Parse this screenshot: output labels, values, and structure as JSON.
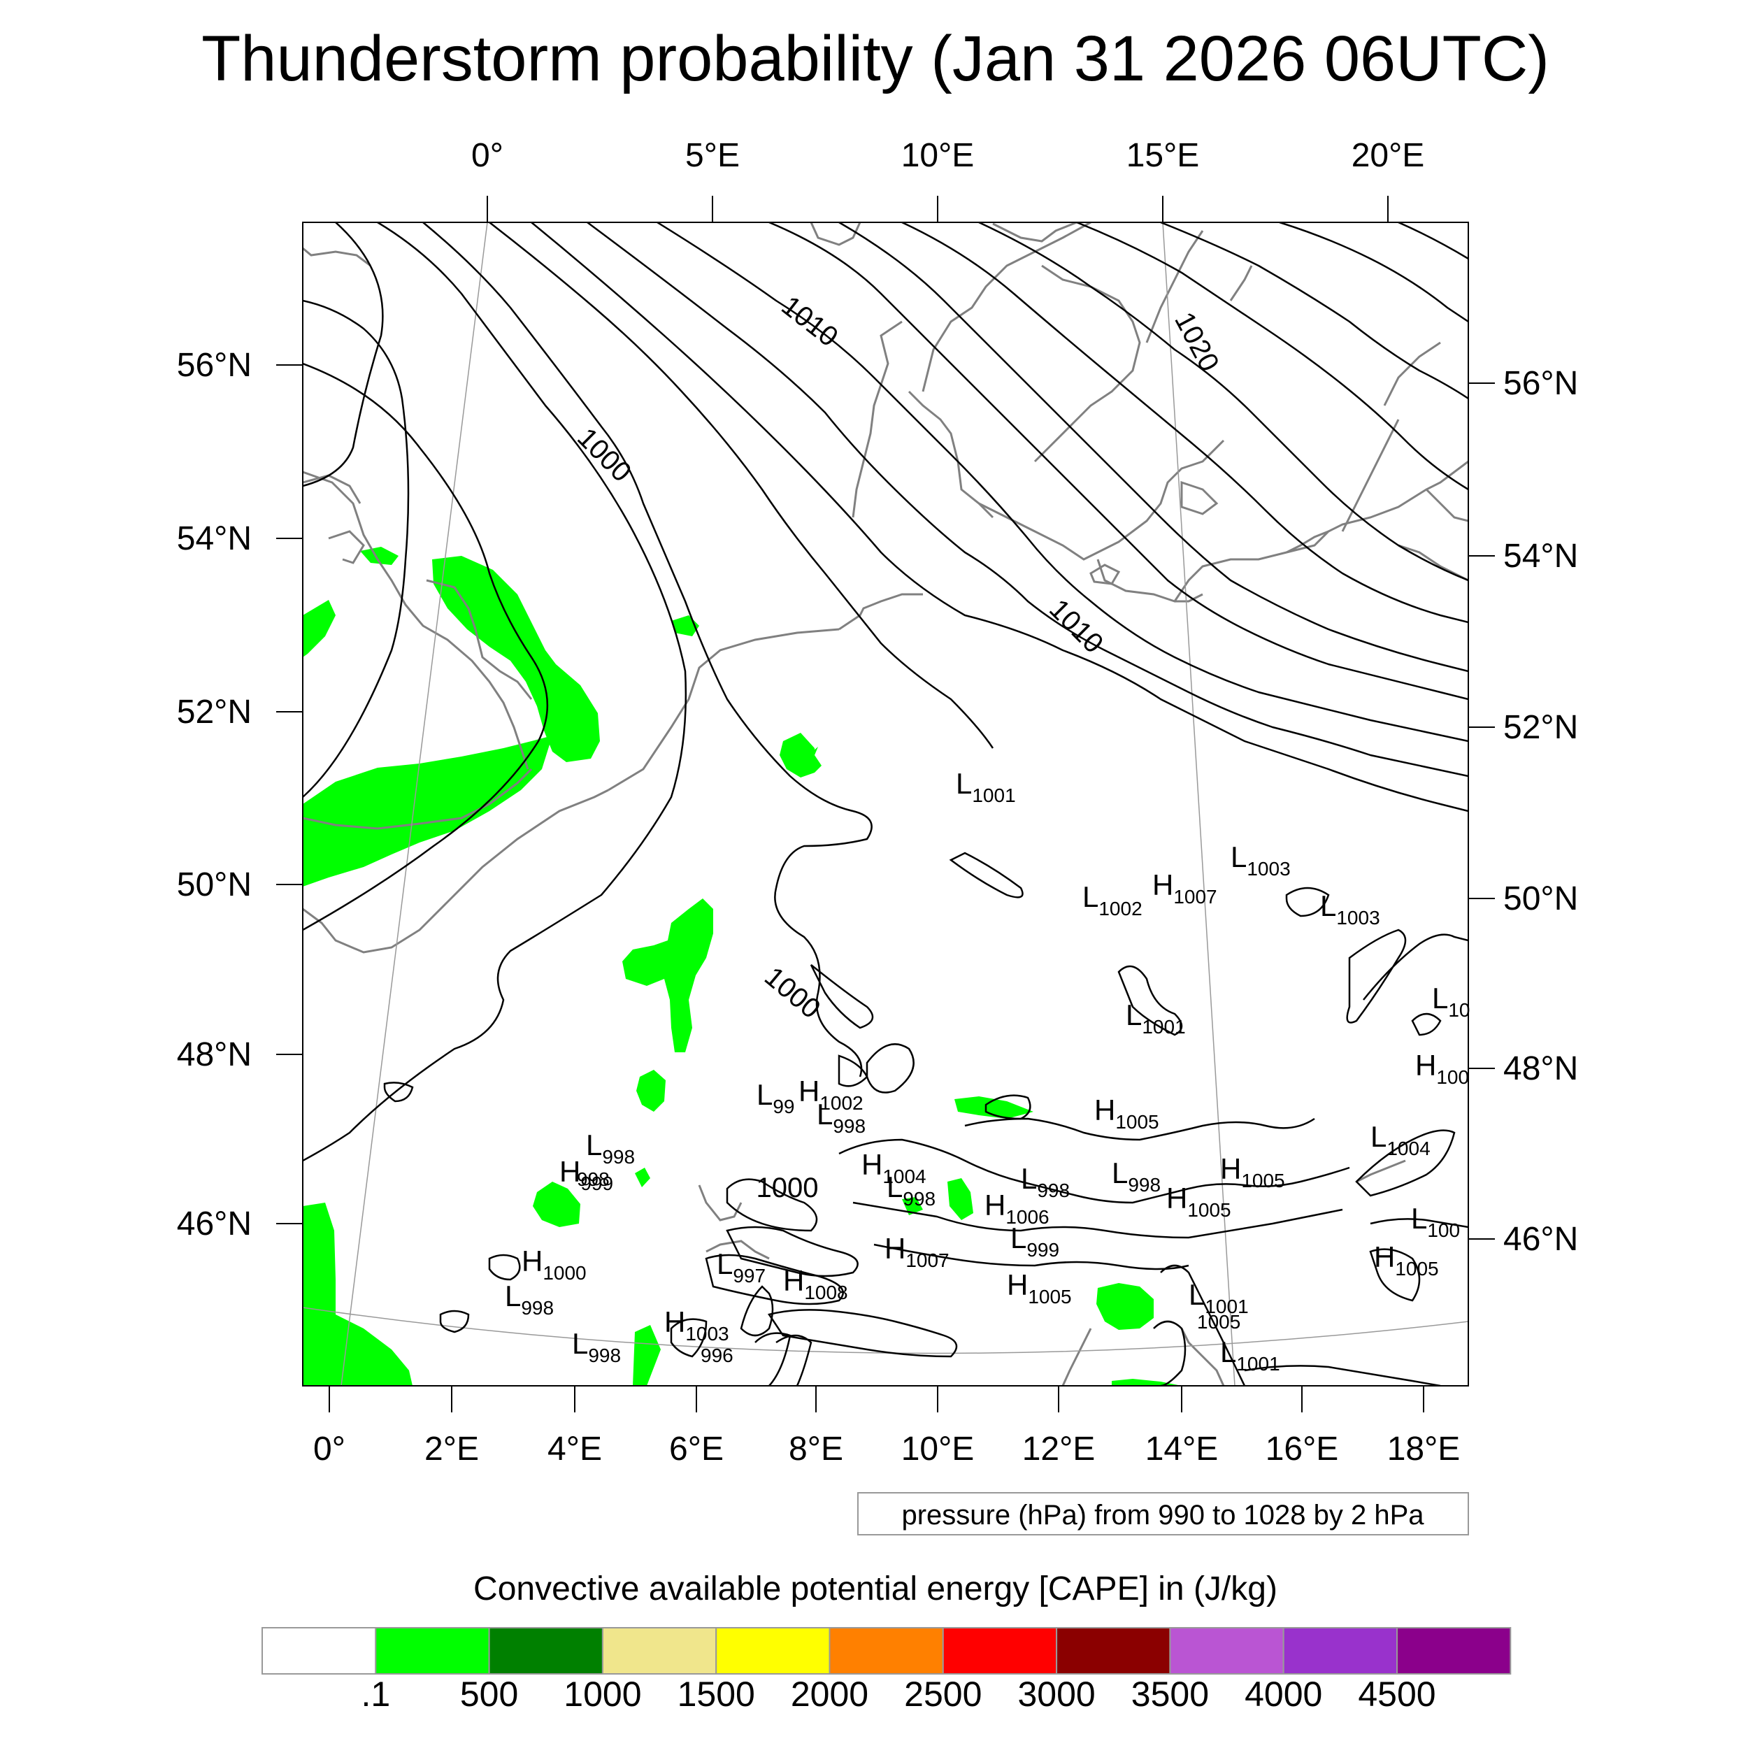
{
  "title": "Thunderstorm probability (Jan 31 2026 06UTC)",
  "top_lon_labels": [
    "0°",
    "5°E",
    "10°E",
    "15°E",
    "20°E"
  ],
  "bottom_lon_labels": [
    "0°",
    "2°E",
    "4°E",
    "6°E",
    "8°E",
    "10°E",
    "12°E",
    "14°E",
    "16°E",
    "18°E"
  ],
  "left_lat_labels": [
    "56°N",
    "54°N",
    "52°N",
    "50°N",
    "48°N",
    "46°N"
  ],
  "right_lat_labels": [
    "56°N",
    "54°N",
    "52°N",
    "50°N",
    "48°N",
    "46°N"
  ],
  "contour_labels": [
    "1010",
    "1020",
    "1000",
    "1010",
    "1000",
    "1000"
  ],
  "pressure_centers": [
    {
      "type": "L",
      "value": "1001"
    },
    {
      "type": "L",
      "value": "1003"
    },
    {
      "type": "L",
      "value": "1002"
    },
    {
      "type": "H",
      "value": "1007"
    },
    {
      "type": "L",
      "value": "1003"
    },
    {
      "type": "L",
      "value": "1001"
    },
    {
      "type": "L",
      "value": "10"
    },
    {
      "type": "H",
      "value": "100"
    },
    {
      "type": "L",
      "value": "99"
    },
    {
      "type": "H",
      "value": "1002"
    },
    {
      "type": "L",
      "value": "998"
    },
    {
      "type": "H",
      "value": "1005"
    },
    {
      "type": "L",
      "value": "1004"
    },
    {
      "type": "L",
      "value": "998"
    },
    {
      "type": "H",
      "value": "999"
    },
    {
      "type": "H",
      "value": "1004"
    },
    {
      "type": "L",
      "value": "998"
    },
    {
      "type": "L",
      "value": "998"
    },
    {
      "type": "L",
      "value": "998"
    },
    {
      "type": "H",
      "value": "1005"
    },
    {
      "type": "H",
      "value": "1006"
    },
    {
      "type": "H",
      "value": "1005"
    },
    {
      "type": "L",
      "value": "100"
    },
    {
      "type": "L",
      "value": "999"
    },
    {
      "type": "H",
      "value": "1005"
    },
    {
      "type": "H",
      "value": "1000"
    },
    {
      "type": "L",
      "value": "998"
    },
    {
      "type": "L",
      "value": "997"
    },
    {
      "type": "H",
      "value": "1008"
    },
    {
      "type": "H",
      "value": "1007"
    },
    {
      "type": "H",
      "value": "1005"
    },
    {
      "type": "L",
      "value": "1001"
    },
    {
      "type": "H",
      "value": "1005"
    },
    {
      "type": "L",
      "value": "998"
    },
    {
      "type": "H",
      "value": "1003"
    },
    {
      "type": "L",
      "value": "996"
    },
    {
      "type": "L",
      "value": "1001"
    },
    {
      "type": "L",
      "value": "998"
    }
  ],
  "info_box": "pressure (hPa) from 990 to 1028 by 2 hPa",
  "colorbar": {
    "label": "Convective available potential energy [CAPE] in (J/kg)",
    "colors": [
      "#ffffff",
      "#00ff00",
      "#008000",
      "#f0e68c",
      "#ffff00",
      "#ff8000",
      "#ff0000",
      "#8b0000",
      "#ba55d3",
      "#9932cc",
      "#8b008b"
    ],
    "tick_labels": [
      ".1",
      "500",
      "1000",
      "1500",
      "2000",
      "2500",
      "3000",
      "3500",
      "4000",
      "4500"
    ]
  },
  "colors": {
    "cape_fill": "#00ff00",
    "coastline": "#808080",
    "isobar": "#000000"
  }
}
